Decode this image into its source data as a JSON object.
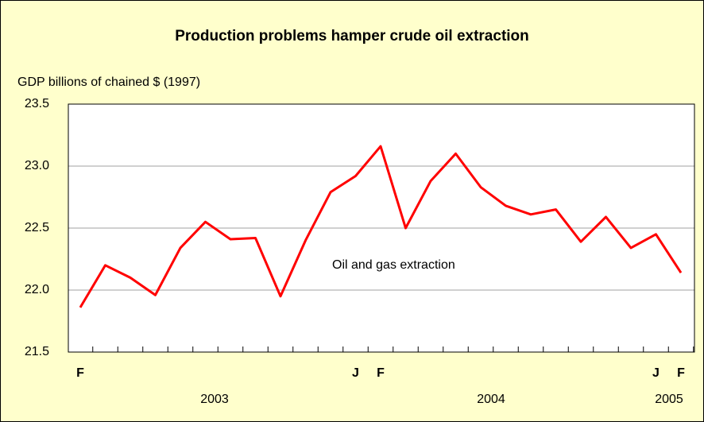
{
  "chart_data": {
    "type": "line",
    "title": "Production problems hamper crude oil extraction",
    "y_axis_label": "GDP billions of chained $ (1997)",
    "categories": [
      "F",
      null,
      null,
      null,
      null,
      null,
      null,
      null,
      null,
      null,
      null,
      "J",
      "F",
      null,
      null,
      null,
      null,
      null,
      null,
      null,
      null,
      null,
      null,
      "J",
      "F"
    ],
    "year_labels": [
      "2003",
      "2004",
      "2005"
    ],
    "series": [
      {
        "name": "Oil and gas extraction",
        "color": "#ff0000",
        "values": [
          21.86,
          22.2,
          22.1,
          21.96,
          22.34,
          22.55,
          22.41,
          22.42,
          21.95,
          22.4,
          22.79,
          22.92,
          23.16,
          22.5,
          22.88,
          23.1,
          22.83,
          22.68,
          22.61,
          22.65,
          22.39,
          22.59,
          22.34,
          22.45,
          22.14
        ]
      }
    ],
    "ylim": [
      21.5,
      23.5
    ],
    "yticks": [
      {
        "value": 21.5,
        "label": "21.5"
      },
      {
        "value": 22,
        "label": "22.0"
      },
      {
        "value": 22.5,
        "label": "22.5"
      },
      {
        "value": 23,
        "label": "23.0"
      },
      {
        "value": 23.5,
        "label": "23.5"
      }
    ],
    "grid": true
  }
}
